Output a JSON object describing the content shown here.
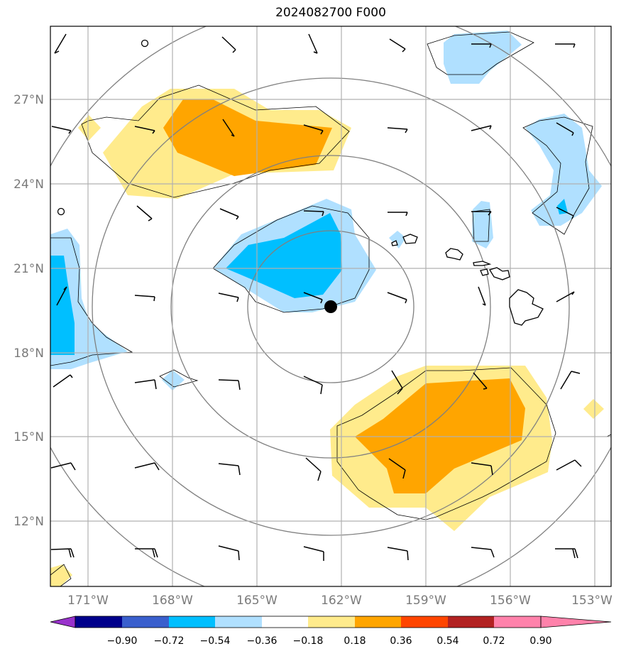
{
  "title": "2024082700 F000",
  "map": {
    "lon_range": [
      -172.7,
      -152.7
    ],
    "lat_range": [
      9.7,
      29.7
    ],
    "lon_ticks": [
      "171°W",
      "168°W",
      "165°W",
      "162°W",
      "159°W",
      "156°W",
      "153°W"
    ],
    "lon_tick_values": [
      -171,
      -168,
      -165,
      -162,
      -159,
      -156,
      -153
    ],
    "lat_ticks": [
      "27°N",
      "24°N",
      "21°N",
      "18°N",
      "15°N",
      "12°N"
    ],
    "lat_tick_values": [
      27,
      24,
      21,
      18,
      15,
      12
    ],
    "center_marker": {
      "lon": -162.4,
      "lat": 19.6
    },
    "range_rings_deg": [
      4,
      8,
      12,
      16
    ],
    "grid": true
  },
  "colorbar": {
    "labels": [
      "−0.90",
      "−0.72",
      "−0.54",
      "−0.36",
      "−0.18",
      "0.18",
      "0.36",
      "0.54",
      "0.72",
      "0.90"
    ],
    "colors": [
      "#9932cc",
      "#00008b",
      "#3a5fcd",
      "#00bfff",
      "#b0e0ff",
      "#ffffff",
      "#ffeb8c",
      "#ffa500",
      "#ff4500",
      "#b22222",
      "#ff82ab"
    ]
  }
}
